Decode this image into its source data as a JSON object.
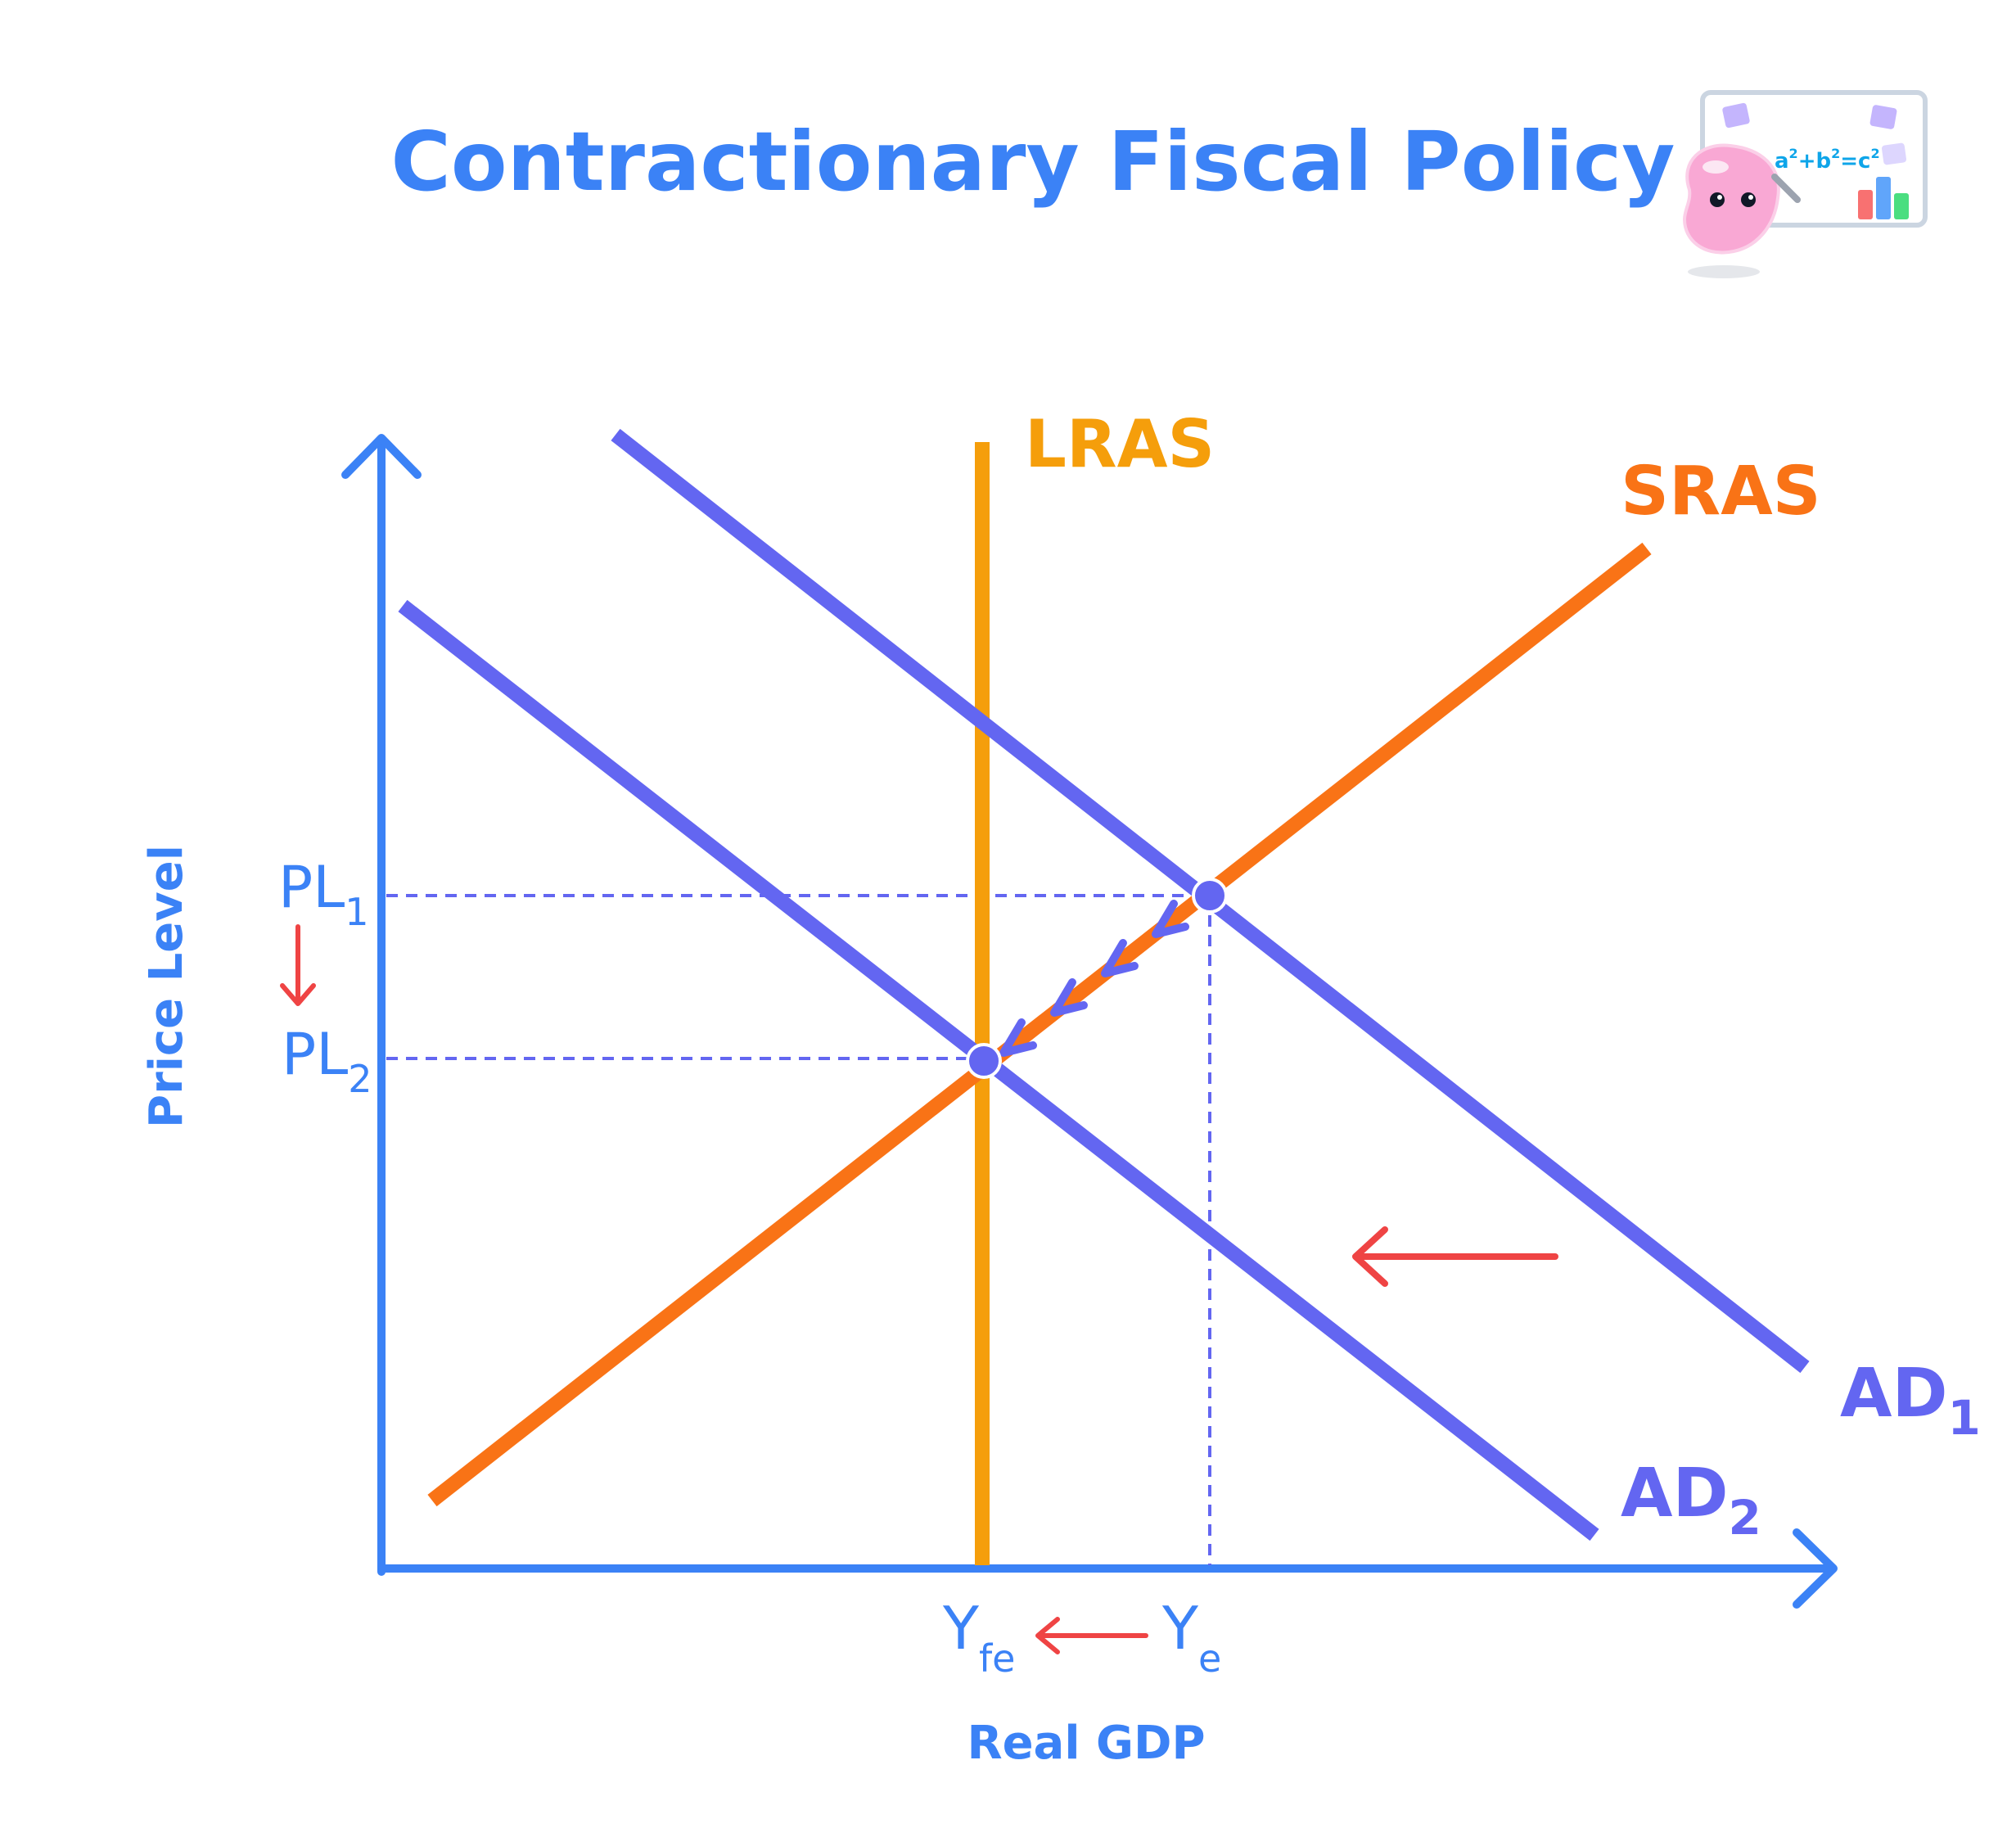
{
  "title": "Contractionary Fiscal Policy",
  "axes": {
    "y_label": "Price Level",
    "x_label": "Real GDP"
  },
  "curves": {
    "lras": {
      "label": "LRAS",
      "color": "#f59e0b"
    },
    "sras": {
      "label": "SRAS",
      "color": "#f97316"
    },
    "ad1": {
      "label_main": "AD",
      "label_sub": "1",
      "color": "#6366f1"
    },
    "ad2": {
      "label_main": "AD",
      "label_sub": "2",
      "color": "#6366f1"
    }
  },
  "price_levels": {
    "pl1": {
      "main": "PL",
      "sub": "1"
    },
    "pl2": {
      "main": "PL",
      "sub": "2"
    }
  },
  "outputs": {
    "yfe": {
      "main": "Y",
      "sub": "fe"
    },
    "ye": {
      "main": "Y",
      "sub": "e"
    }
  },
  "mascot": {
    "formula_base": [
      "a",
      "+b",
      "=c"
    ],
    "formula_exp": "2"
  },
  "colors": {
    "axis": "#3b82f6",
    "text_blue": "#3b82f6",
    "shift_arrow": "#ef4444",
    "guide": "#6366f1",
    "point_fill": "#6366f1"
  }
}
